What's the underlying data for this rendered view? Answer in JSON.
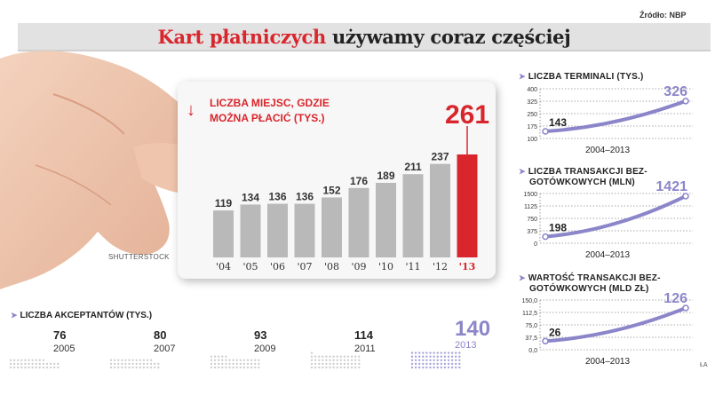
{
  "header": {
    "title_red": "Kart płatniczych",
    "title_rest": " używamy coraz częściej",
    "source": "Źródło: NBP"
  },
  "photo_credit": "SHUTTERSTOCK",
  "signature": "ŁA",
  "colors": {
    "accent_red": "#d8262c",
    "bar_grey": "#b9b9b9",
    "purple": "#8b85c9",
    "dot_grey": "#cfcfcf",
    "dot_purple": "#a9a4d9"
  },
  "chart_data": [
    {
      "type": "bar",
      "title": "Liczba miejsc, gdzie można płacić (tys.)",
      "categories": [
        "'04",
        "'05",
        "'06",
        "'07",
        "'08",
        "'09",
        "'10",
        "'11",
        "'12",
        "'13"
      ],
      "values": [
        119,
        134,
        136,
        136,
        152,
        176,
        189,
        211,
        237,
        261
      ],
      "highlight_index": 9,
      "ylim": [
        0,
        261
      ]
    },
    {
      "type": "line",
      "title": "Liczba terminali (tys.)",
      "x": [
        2004,
        2013
      ],
      "y": [
        143,
        326
      ],
      "xlabel": "2004–2013",
      "yticks": [
        "400",
        "325",
        "250",
        "175",
        "100"
      ],
      "ylim": [
        100,
        400
      ]
    },
    {
      "type": "line",
      "title": "Liczba transakcji bezgotówkowych (mln)",
      "title_lines": [
        "Liczba transakcji bez-",
        "gotówkowych (mln)"
      ],
      "x": [
        2004,
        2013
      ],
      "y": [
        198,
        1421
      ],
      "xlabel": "2004–2013",
      "yticks": [
        "1500",
        "1125",
        "750",
        "375",
        "0"
      ],
      "ylim": [
        0,
        1500
      ]
    },
    {
      "type": "line",
      "title": "Wartość transakcji bezgotówkowych (mld zł)",
      "title_lines": [
        "Wartość transakcji bez-",
        "gotówkowych (mld zł)"
      ],
      "x": [
        2004,
        2013
      ],
      "y": [
        26,
        126
      ],
      "xlabel": "2004–2013",
      "yticks": [
        "150,0",
        "112,5",
        "75,0",
        "37,5",
        "0,0"
      ],
      "ylim": [
        0,
        150
      ]
    },
    {
      "type": "bar",
      "title": "Liczba akceptantów (tys.)",
      "categories": [
        "2005",
        "2007",
        "2009",
        "2011",
        "2013"
      ],
      "values": [
        76,
        80,
        93,
        114,
        140
      ],
      "highlight_index": 4
    }
  ]
}
